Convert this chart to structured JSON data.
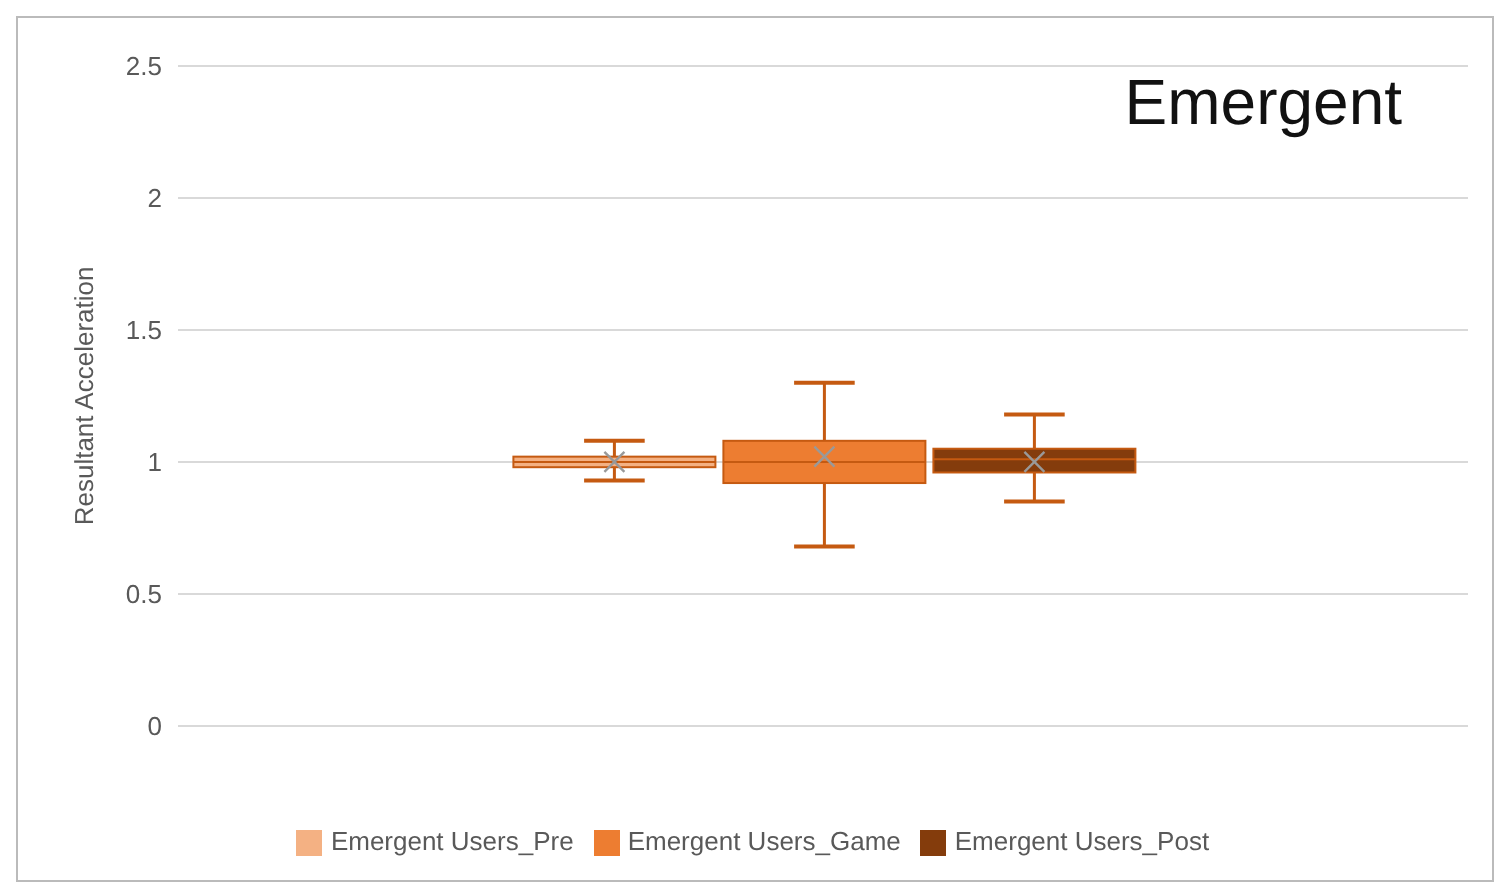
{
  "chart_data": {
    "type": "box",
    "title": "Emergent",
    "ylabel": "Resultant Acceleration",
    "categories": [
      null
    ],
    "series": [
      {
        "name": "Emergent Users_Pre",
        "color": "#f4b183",
        "boxes": [
          {
            "low": 0.93,
            "q1": 0.98,
            "median": 1.0,
            "q3": 1.02,
            "high": 1.08,
            "mean": 1.0
          }
        ]
      },
      {
        "name": "Emergent Users_Game",
        "color": "#ed7d31",
        "boxes": [
          {
            "low": 0.68,
            "q1": 0.92,
            "median": 1.0,
            "q3": 1.08,
            "high": 1.3,
            "mean": 1.02
          }
        ]
      },
      {
        "name": "Emergent Users_Post",
        "color": "#843c0c",
        "boxes": [
          {
            "low": 0.85,
            "q1": 0.96,
            "median": 1.01,
            "q3": 1.05,
            "high": 1.18,
            "mean": 1.0
          }
        ]
      }
    ],
    "ylim": [
      0,
      2.5
    ],
    "yticks": [
      0,
      0.5,
      1,
      1.5,
      2,
      2.5
    ],
    "grid": "y",
    "legend": "bottom",
    "tick_labels": "y"
  }
}
